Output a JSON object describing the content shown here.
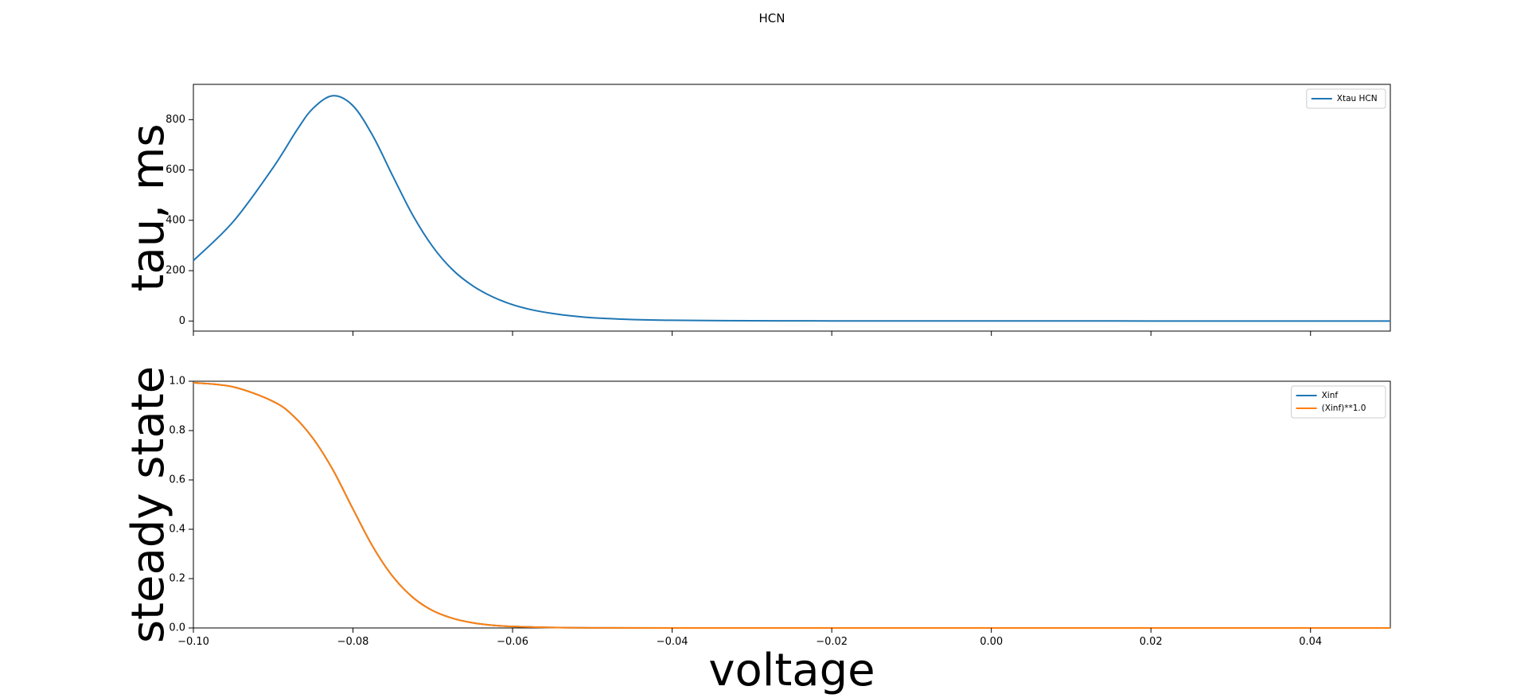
{
  "figure_title": "HCN",
  "colors": {
    "tau": "#1f77b4",
    "xinf": "#1f77b4",
    "xinf_pow": "#ff7f0e"
  },
  "chart_data": [
    {
      "type": "line",
      "title": "",
      "xlabel": "",
      "ylabel": "tau, ms",
      "xlim": [
        -0.1,
        0.05
      ],
      "ylim": [
        -40,
        940
      ],
      "xticks": [
        -0.1,
        -0.08,
        -0.06,
        -0.04,
        -0.02,
        0.0,
        0.02,
        0.04
      ],
      "xtick_labels_visible": false,
      "yticks": [
        0,
        200,
        400,
        600,
        800
      ],
      "ytick_labels": [
        "0",
        "200",
        "400",
        "600",
        "800"
      ],
      "legend_position": "upper right",
      "grid": false,
      "series": [
        {
          "name": "Xtau HCN",
          "x": [
            -0.1,
            -0.095,
            -0.09,
            -0.087,
            -0.085,
            -0.0825,
            -0.08,
            -0.0775,
            -0.075,
            -0.0725,
            -0.07,
            -0.0675,
            -0.065,
            -0.0625,
            -0.06,
            -0.0575,
            -0.055,
            -0.0525,
            -0.05,
            -0.045,
            -0.04,
            -0.03,
            -0.02,
            0.0,
            0.02,
            0.05
          ],
          "y": [
            240,
            395,
            610,
            760,
            845,
            895,
            855,
            735,
            575,
            420,
            295,
            203,
            140,
            96,
            65,
            44,
            30,
            20,
            13,
            6,
            3,
            1,
            0.5,
            0.2,
            0.1,
            0.05
          ]
        }
      ]
    },
    {
      "type": "line",
      "title": "",
      "xlabel": "voltage",
      "ylabel": "steady state",
      "xlim": [
        -0.1,
        0.05
      ],
      "ylim": [
        0.0,
        1.0
      ],
      "xticks": [
        -0.1,
        -0.08,
        -0.06,
        -0.04,
        -0.02,
        0.0,
        0.02,
        0.04
      ],
      "xtick_labels": [
        "−0.10",
        "−0.08",
        "−0.06",
        "−0.04",
        "−0.02",
        "0.00",
        "0.02",
        "0.04"
      ],
      "yticks": [
        0.0,
        0.2,
        0.4,
        0.6,
        0.8,
        1.0
      ],
      "ytick_labels": [
        "0.0",
        "0.2",
        "0.4",
        "0.6",
        "0.8",
        "1.0"
      ],
      "legend_position": "upper right",
      "grid": false,
      "series": [
        {
          "name": "Xinf",
          "x": [
            -0.1,
            -0.095,
            -0.09,
            -0.0875,
            -0.085,
            -0.0825,
            -0.08,
            -0.0775,
            -0.075,
            -0.0725,
            -0.07,
            -0.0675,
            -0.065,
            -0.0625,
            -0.06,
            -0.055,
            -0.05,
            -0.04,
            -0.02,
            0.0,
            0.05
          ],
          "y": [
            0.994,
            0.977,
            0.918,
            0.86,
            0.768,
            0.64,
            0.482,
            0.329,
            0.208,
            0.124,
            0.07,
            0.039,
            0.021,
            0.011,
            0.006,
            0.002,
            0.0005,
            0.0,
            0.0,
            0.0,
            0.0
          ]
        },
        {
          "name": "(Xinf)**1.0",
          "x": [
            -0.1,
            -0.095,
            -0.09,
            -0.0875,
            -0.085,
            -0.0825,
            -0.08,
            -0.0775,
            -0.075,
            -0.0725,
            -0.07,
            -0.0675,
            -0.065,
            -0.0625,
            -0.06,
            -0.055,
            -0.05,
            -0.04,
            -0.02,
            0.0,
            0.05
          ],
          "y": [
            0.994,
            0.977,
            0.918,
            0.86,
            0.768,
            0.64,
            0.482,
            0.329,
            0.208,
            0.124,
            0.07,
            0.039,
            0.021,
            0.011,
            0.006,
            0.002,
            0.0005,
            0.0,
            0.0,
            0.0,
            0.0
          ]
        }
      ]
    }
  ]
}
